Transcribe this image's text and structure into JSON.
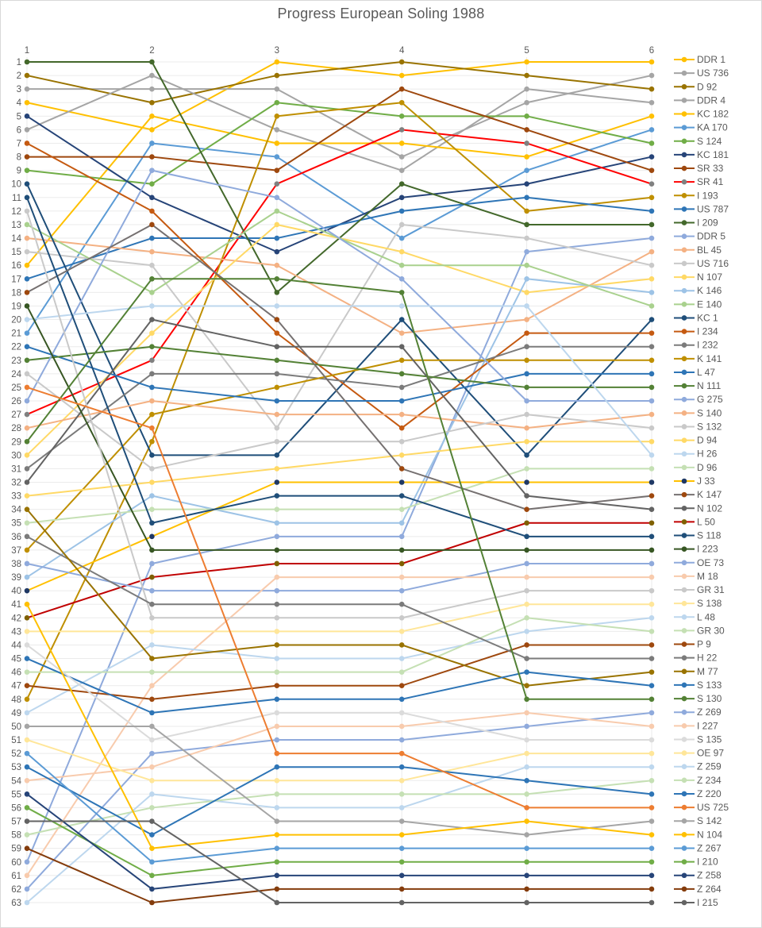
{
  "title": "Progress European Soling 1988",
  "chart_data": {
    "type": "line",
    "subtype": "bump-chart-rankings",
    "title": "Progress European Soling 1988",
    "xlabel": "",
    "ylabel": "",
    "x_ticks": [
      "1",
      "2",
      "3",
      "4",
      "5",
      "6"
    ],
    "y_ticks": [
      1,
      2,
      3,
      4,
      5,
      6,
      7,
      8,
      9,
      10,
      11,
      12,
      13,
      14,
      15,
      16,
      17,
      18,
      19,
      20,
      21,
      22,
      23,
      24,
      25,
      26,
      27,
      28,
      29,
      30,
      31,
      32,
      33,
      34,
      35,
      36,
      37,
      38,
      39,
      40,
      41,
      42,
      43,
      44,
      45,
      46,
      47,
      48,
      49,
      50,
      51,
      52,
      53,
      54,
      55,
      56,
      57,
      58,
      59,
      60,
      61,
      62,
      63
    ],
    "ylim": [
      1,
      63
    ],
    "y_inverted": true,
    "grid": true,
    "legend_position": "right",
    "axis_text_color": "#595959",
    "grid_color": "#ebebeb",
    "series": [
      {
        "name": "DDR 1",
        "color": "#FFC000",
        "values": [
          4,
          6,
          1,
          2,
          1,
          1
        ]
      },
      {
        "name": "US 736",
        "color": "#A5A5A5",
        "values": [
          3,
          3,
          3,
          8,
          4,
          2
        ]
      },
      {
        "name": "D 92",
        "color": "#997300",
        "values": [
          2,
          4,
          2,
          1,
          2,
          3
        ]
      },
      {
        "name": "DDR 4",
        "color": "#A5A5A5",
        "values": [
          6,
          2,
          6,
          9,
          3,
          4
        ]
      },
      {
        "name": "KC 182",
        "color": "#FFC000",
        "values": [
          16,
          5,
          7,
          7,
          8,
          5
        ]
      },
      {
        "name": "KA 170",
        "color": "#5B9BD5",
        "values": [
          21,
          7,
          8,
          14,
          9,
          6
        ]
      },
      {
        "name": "S 124",
        "color": "#70AD47",
        "values": [
          9,
          10,
          4,
          5,
          5,
          7
        ]
      },
      {
        "name": "KC 181",
        "color": "#264478",
        "values": [
          5,
          11,
          15,
          11,
          10,
          8
        ]
      },
      {
        "name": "SR 33",
        "color": "#9E480E",
        "values": [
          8,
          8,
          9,
          3,
          6,
          9
        ]
      },
      {
        "name": "SR 41",
        "color": "#FF0000",
        "marker": "#808080",
        "values": [
          27,
          23,
          10,
          6,
          7,
          10
        ]
      },
      {
        "name": "I 193",
        "color": "#BF8F00",
        "values": [
          48,
          29,
          5,
          4,
          12,
          11
        ]
      },
      {
        "name": "US 787",
        "color": "#2E75B6",
        "values": [
          17,
          14,
          14,
          12,
          11,
          12
        ]
      },
      {
        "name": "I 209",
        "color": "#43682B",
        "values": [
          1,
          1,
          18,
          10,
          13,
          13
        ]
      },
      {
        "name": "DDR 5",
        "color": "#8FAADC",
        "values": [
          60,
          38,
          36,
          36,
          15,
          14
        ]
      },
      {
        "name": "BL 45",
        "color": "#F4B183",
        "values": [
          14,
          15,
          16,
          21,
          20,
          15
        ]
      },
      {
        "name": "US 716",
        "color": "#C9C9C9",
        "values": [
          15,
          16,
          28,
          13,
          14,
          16
        ]
      },
      {
        "name": "N 107",
        "color": "#FFD966",
        "values": [
          30,
          21,
          13,
          15,
          18,
          17
        ]
      },
      {
        "name": "K 146",
        "color": "#9DC3E6",
        "values": [
          39,
          33,
          35,
          35,
          17,
          18
        ]
      },
      {
        "name": "E 140",
        "color": "#A9D18E",
        "values": [
          13,
          18,
          12,
          16,
          16,
          19
        ]
      },
      {
        "name": "KC 1",
        "color": "#1F4E79",
        "values": [
          10,
          30,
          30,
          20,
          30,
          20
        ]
      },
      {
        "name": "I 234",
        "color": "#C55A11",
        "values": [
          7,
          12,
          21,
          28,
          21,
          21
        ]
      },
      {
        "name": "I 232",
        "color": "#7B7B7B",
        "values": [
          31,
          24,
          24,
          25,
          22,
          22
        ]
      },
      {
        "name": "K 141",
        "color": "#BF8F00",
        "values": [
          37,
          27,
          25,
          23,
          23,
          23
        ]
      },
      {
        "name": "L 47",
        "color": "#2E75B6",
        "values": [
          22,
          25,
          26,
          26,
          24,
          24
        ]
      },
      {
        "name": "N 111",
        "color": "#538135",
        "values": [
          23,
          22,
          23,
          24,
          25,
          25
        ]
      },
      {
        "name": "G 275",
        "color": "#8FAADC",
        "values": [
          26,
          9,
          11,
          17,
          26,
          26
        ]
      },
      {
        "name": "S 140",
        "color": "#F4B183",
        "values": [
          28,
          26,
          27,
          27,
          28,
          27
        ]
      },
      {
        "name": "S 132",
        "color": "#C9C9C9",
        "values": [
          24,
          31,
          29,
          29,
          27,
          28
        ]
      },
      {
        "name": "D 94",
        "color": "#FFD966",
        "values": [
          33,
          32,
          31,
          30,
          29,
          29
        ]
      },
      {
        "name": "H 26",
        "color": "#BDD7EE",
        "values": [
          20,
          19,
          19,
          19,
          19,
          30
        ]
      },
      {
        "name": "D 96",
        "color": "#C5E0B4",
        "values": [
          35,
          34,
          34,
          34,
          31,
          31
        ]
      },
      {
        "name": "J 33",
        "color": "#FFC000",
        "marker": "#1F3864",
        "values": [
          40,
          36,
          32,
          32,
          32,
          32
        ]
      },
      {
        "name": "K 147",
        "color": "#757070",
        "marker": "#9E480E",
        "values": [
          18,
          13,
          20,
          31,
          34,
          33
        ]
      },
      {
        "name": "N 102",
        "color": "#636363",
        "values": [
          32,
          20,
          22,
          22,
          33,
          34
        ]
      },
      {
        "name": "L 50",
        "color": "#C00000",
        "marker": "#7F6000",
        "values": [
          42,
          39,
          38,
          38,
          35,
          35
        ]
      },
      {
        "name": "S 118",
        "color": "#1F4E79",
        "values": [
          11,
          35,
          33,
          33,
          36,
          36
        ]
      },
      {
        "name": "I 223",
        "color": "#375623",
        "values": [
          19,
          37,
          37,
          37,
          37,
          37
        ]
      },
      {
        "name": "OE 73",
        "color": "#8FAADC",
        "values": [
          38,
          40,
          40,
          40,
          38,
          38
        ]
      },
      {
        "name": "M 18",
        "color": "#F8CBAD",
        "values": [
          61,
          47,
          39,
          39,
          39,
          39
        ]
      },
      {
        "name": "GR 31",
        "color": "#C9C9C9",
        "values": [
          12,
          42,
          42,
          42,
          40,
          40
        ]
      },
      {
        "name": "S 138",
        "color": "#FFE699",
        "values": [
          43,
          43,
          43,
          43,
          41,
          41
        ]
      },
      {
        "name": "L 48",
        "color": "#BDD7EE",
        "values": [
          49,
          44,
          45,
          45,
          43,
          42
        ]
      },
      {
        "name": "GR 30",
        "color": "#C5E0B4",
        "values": [
          46,
          46,
          46,
          46,
          42,
          43
        ]
      },
      {
        "name": "P 9",
        "color": "#9E480E",
        "values": [
          47,
          48,
          47,
          47,
          44,
          44
        ]
      },
      {
        "name": "H 22",
        "color": "#7B7B7B",
        "values": [
          36,
          41,
          41,
          41,
          45,
          45
        ]
      },
      {
        "name": "M 77",
        "color": "#997300",
        "values": [
          34,
          45,
          44,
          44,
          47,
          46
        ]
      },
      {
        "name": "S 133",
        "color": "#2E75B6",
        "values": [
          45,
          49,
          48,
          48,
          46,
          47
        ]
      },
      {
        "name": "S 130",
        "color": "#538135",
        "values": [
          29,
          17,
          17,
          18,
          48,
          48
        ]
      },
      {
        "name": "Z 269",
        "color": "#8FAADC",
        "values": [
          62,
          52,
          51,
          51,
          50,
          49
        ]
      },
      {
        "name": "I 227",
        "color": "#F8CBAD",
        "values": [
          54,
          53,
          50,
          50,
          49,
          50
        ]
      },
      {
        "name": "S 135",
        "color": "#DBDBDB",
        "values": [
          44,
          51,
          49,
          49,
          51,
          51
        ]
      },
      {
        "name": "OE 97",
        "color": "#FFE699",
        "values": [
          51,
          54,
          54,
          54,
          52,
          52
        ]
      },
      {
        "name": "Z 259",
        "color": "#BDD7EE",
        "values": [
          63,
          55,
          56,
          56,
          53,
          53
        ]
      },
      {
        "name": "Z 234",
        "color": "#C5E0B4",
        "values": [
          58,
          56,
          55,
          55,
          55,
          54
        ]
      },
      {
        "name": "Z 220",
        "color": "#2E75B6",
        "values": [
          53,
          58,
          53,
          53,
          54,
          55
        ]
      },
      {
        "name": "US 725",
        "color": "#ED7D31",
        "values": [
          25,
          28,
          52,
          52,
          56,
          56
        ]
      },
      {
        "name": "S 142",
        "color": "#A5A5A5",
        "values": [
          50,
          50,
          57,
          57,
          58,
          57
        ]
      },
      {
        "name": "N 104",
        "color": "#FFC000",
        "values": [
          41,
          59,
          58,
          58,
          57,
          58
        ]
      },
      {
        "name": "Z 267",
        "color": "#5B9BD5",
        "values": [
          52,
          60,
          59,
          59,
          59,
          59
        ]
      },
      {
        "name": "I 210",
        "color": "#70AD47",
        "values": [
          56,
          61,
          60,
          60,
          60,
          60
        ]
      },
      {
        "name": "Z 258",
        "color": "#264478",
        "values": [
          55,
          62,
          61,
          61,
          61,
          61
        ]
      },
      {
        "name": "Z 264",
        "color": "#843C0C",
        "values": [
          59,
          63,
          62,
          62,
          62,
          62
        ]
      },
      {
        "name": "I 215",
        "color": "#636363",
        "values": [
          57,
          57,
          63,
          63,
          63,
          63
        ]
      }
    ]
  }
}
